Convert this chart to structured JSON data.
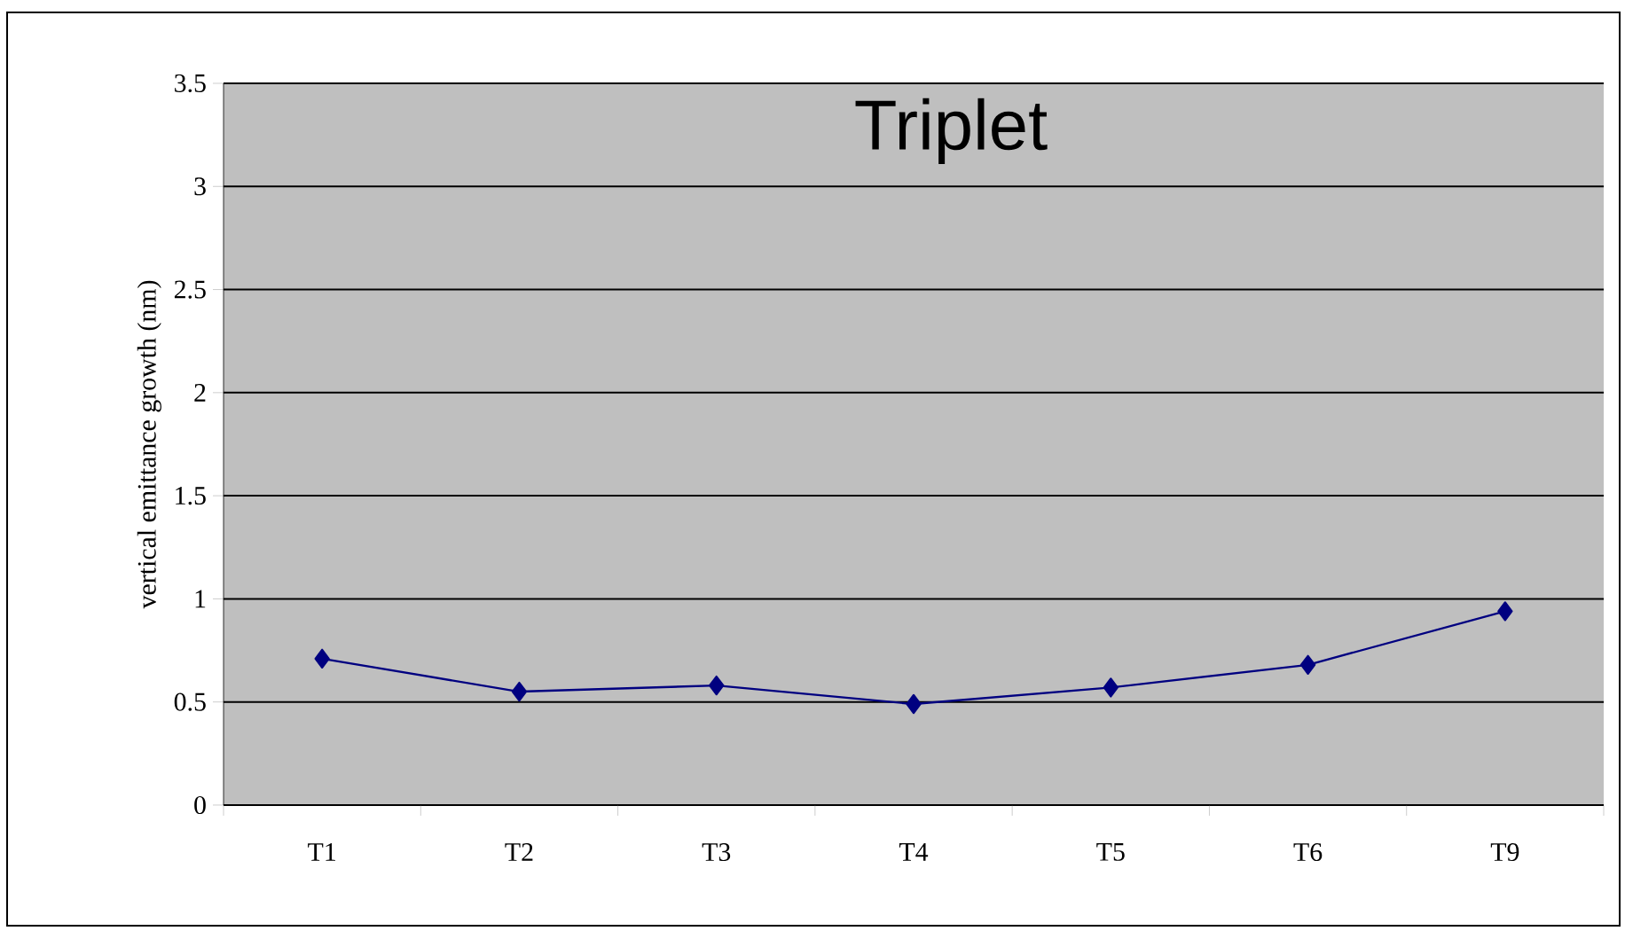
{
  "chart_data": {
    "type": "line",
    "title": "Triplet",
    "ylabel": "vertical emittance growth (nm)",
    "categories": [
      "T1",
      "T2",
      "T3",
      "T4",
      "T5",
      "T6",
      "T9"
    ],
    "series": [
      {
        "color": "#000080",
        "values": [
          0.71,
          0.55,
          0.58,
          0.49,
          0.57,
          0.68,
          0.94
        ]
      }
    ],
    "ylim": [
      0,
      3.5
    ],
    "yticks": [
      0,
      0.5,
      1,
      1.5,
      2,
      2.5,
      3,
      3.5
    ],
    "grid": "y",
    "marker": "diamond",
    "line_style": "solid"
  }
}
